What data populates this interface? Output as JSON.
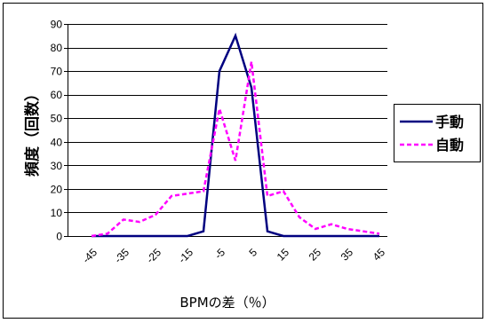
{
  "chart_data": {
    "type": "line",
    "x": [
      -45,
      -40,
      -35,
      -30,
      -25,
      -20,
      -15,
      -10,
      -5,
      0,
      5,
      10,
      15,
      20,
      25,
      30,
      35,
      40,
      45
    ],
    "xticks": [
      -45,
      -35,
      -25,
      -15,
      -5,
      5,
      15,
      25,
      35,
      45
    ],
    "series": [
      {
        "name": "手動",
        "values": [
          0,
          0,
          0,
          0,
          0,
          0,
          0,
          2,
          70,
          85,
          63,
          2,
          0,
          0,
          0,
          0,
          0,
          0,
          0
        ],
        "color": "#000080",
        "dashed": false
      },
      {
        "name": "自動",
        "values": [
          0,
          1,
          7,
          6,
          9,
          17,
          18,
          19,
          54,
          32,
          74,
          17,
          19,
          8,
          3,
          5,
          3,
          2,
          1
        ],
        "color": "#FF00FF",
        "dashed": true
      }
    ],
    "xlabel": "BPMの差（％）",
    "ylabel": "頻度（回数）",
    "ylim": [
      0,
      90
    ],
    "yticks": [
      0,
      10,
      20,
      30,
      40,
      50,
      60,
      70,
      80,
      90
    ],
    "grid": true,
    "legend": "right"
  }
}
